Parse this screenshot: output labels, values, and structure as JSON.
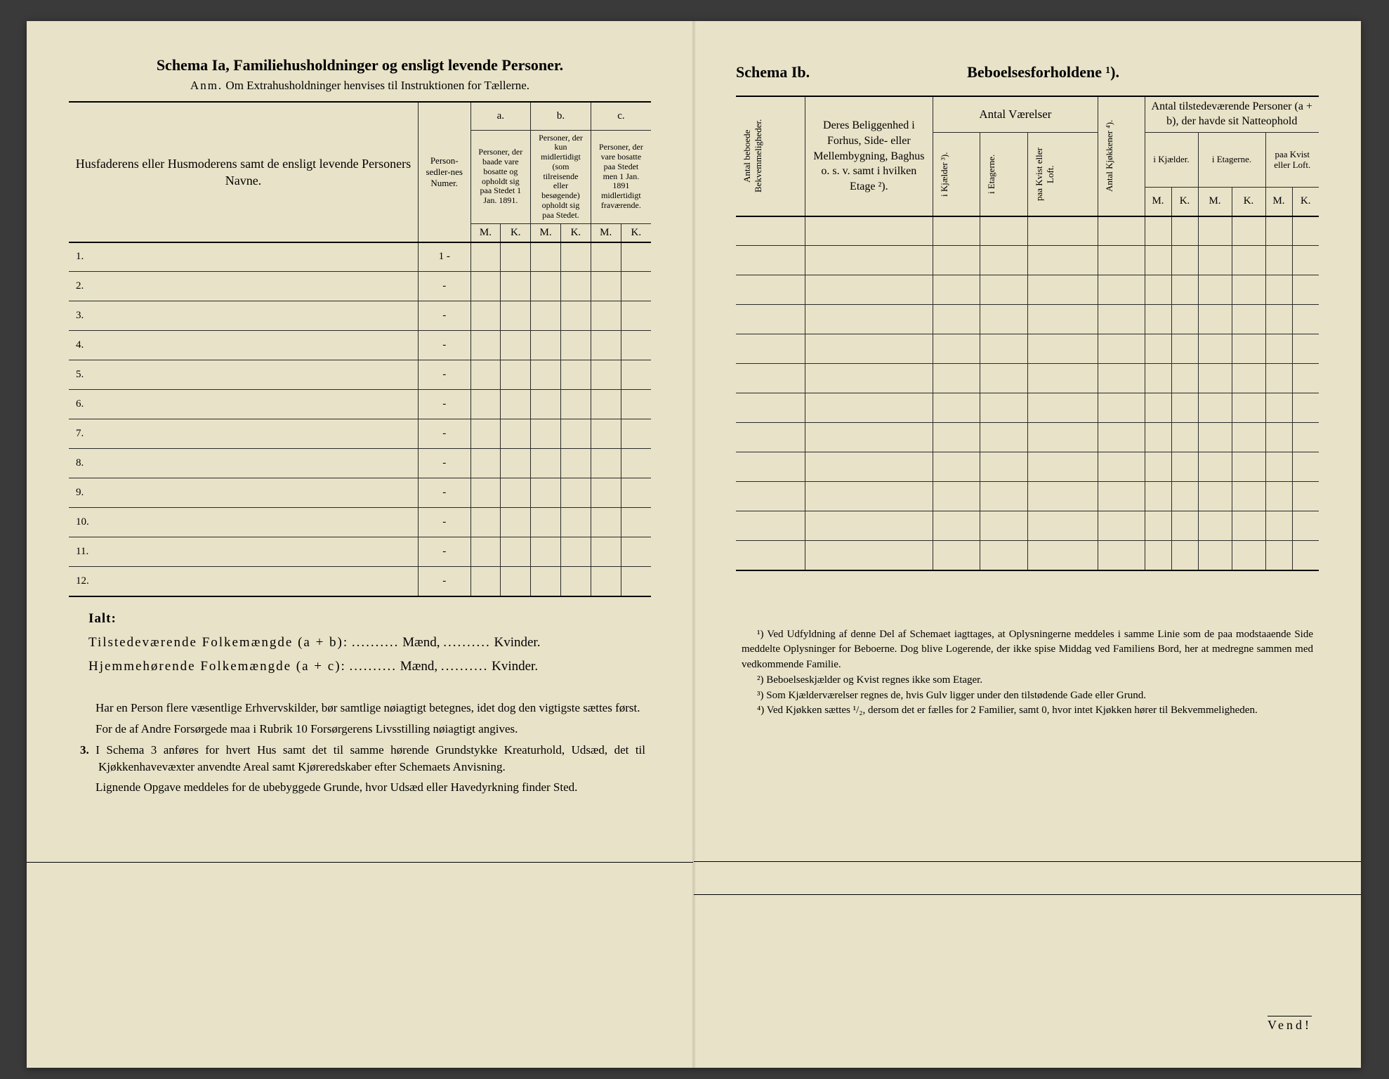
{
  "colors": {
    "paper_bg": "#e8e2c8",
    "ink": "#2a2a2a",
    "outer_bg": "#3a3a3a",
    "rule_thick": "#000000"
  },
  "left": {
    "title_main": "Schema Ia,  Familiehusholdninger og ensligt levende Personer.",
    "title_sub_prefix": "Anm.",
    "title_sub": "Om Extrahusholdninger henvises til Instruktionen for Tællerne.",
    "col1": "Husfaderens eller Husmoderens samt de ensligt levende Personers Navne.",
    "col2": "Person-sedler-nes Numer.",
    "abc": {
      "a": "a.",
      "b": "b.",
      "c": "c."
    },
    "col_a": "Personer, der baade vare bosatte og opholdt sig paa Stedet 1 Jan. 1891.",
    "col_b": "Personer, der kun midlertidigt (som tilreisende eller besøgende) opholdt sig paa Stedet.",
    "col_c": "Personer, der vare bosatte paa Stedet men 1 Jan. 1891 midlertidigt fraværende.",
    "M": "M.",
    "K": "K.",
    "rows": [
      "1.",
      "2.",
      "3.",
      "4.",
      "5.",
      "6.",
      "7.",
      "8.",
      "9.",
      "10.",
      "11.",
      "12."
    ],
    "row_marks": [
      "1 -",
      "-",
      "-",
      "-",
      "-",
      "-",
      "-",
      "-",
      "-",
      "-",
      "-",
      "-"
    ],
    "ialt": "Ialt:",
    "tot1_label": "Tilstedeværende Folkemængde (a + b):",
    "tot2_label": "Hjemmehørende Folkemængde (a + c):",
    "dots": "..........",
    "maend": "Mænd,",
    "kvinder": "Kvinder.",
    "para1": "Har en Person flere væsentlige Erhvervskilder, bør samtlige nøiagtigt betegnes, idet dog den vigtigste sættes først.",
    "para2": "For de af Andre Forsørgede maa i Rubrik 10 Forsørgerens Livsstilling nøiagtigt angives.",
    "para3_num": "3.",
    "para3": "I Schema 3 anføres for hvert Hus samt det til samme hørende Grundstykke Kreaturhold, Udsæd, det til Kjøkkenhavevæxter anvendte Areal samt Kjøreredskaber efter Schemaets Anvisning.",
    "para4": "Lignende Opgave meddeles for de ubebyggede Grunde, hvor Udsæd eller Havedyrkning finder Sted."
  },
  "right": {
    "schema_label": "Schema Ib.",
    "title": "Beboelsesforholdene ¹).",
    "col_vert1": "Antal beboede Bekvemmeligheder.",
    "col2": "Deres Beliggenhed i Forhus, Side- eller Mellembygning, Baghus o. s. v. samt i hvilken Etage ²).",
    "group_vaer": "Antal Værelser",
    "sub_kj": "i Kjælder ³).",
    "sub_et": "i Etagerne.",
    "sub_kv": "paa Kvist eller Loft.",
    "col_kjok": "Antal Kjøkkener ⁴).",
    "group_natt": "Antal tilstedeværende Personer (a + b), der havde sit Natteophold",
    "natt_kj": "i Kjælder.",
    "natt_et": "i Etagerne.",
    "natt_kv": "paa Kvist eller Loft.",
    "M": "M.",
    "K": "K.",
    "blank_rows": 12,
    "fn1": "¹) Ved Udfyldning af denne Del af Schemaet iagttages, at Oplysningerne meddeles i samme Linie som de paa modstaaende Side meddelte Oplysninger for Beboerne. Dog blive Logerende, der ikke spise Middag ved Familiens Bord, her at medregne sammen med vedkommende Familie.",
    "fn2": "²) Beboelseskjælder og Kvist regnes ikke som Etager.",
    "fn3": "³) Som Kjælderværelser regnes de, hvis Gulv ligger under den tilstødende Gade eller Grund.",
    "fn4": "⁴) Ved Kjøkken sættes ¹/₂, dersom det er fælles for 2 Familier, samt 0, hvor intet Kjøkken hører til Bekvemmeligheden.",
    "vend": "Vend!"
  }
}
